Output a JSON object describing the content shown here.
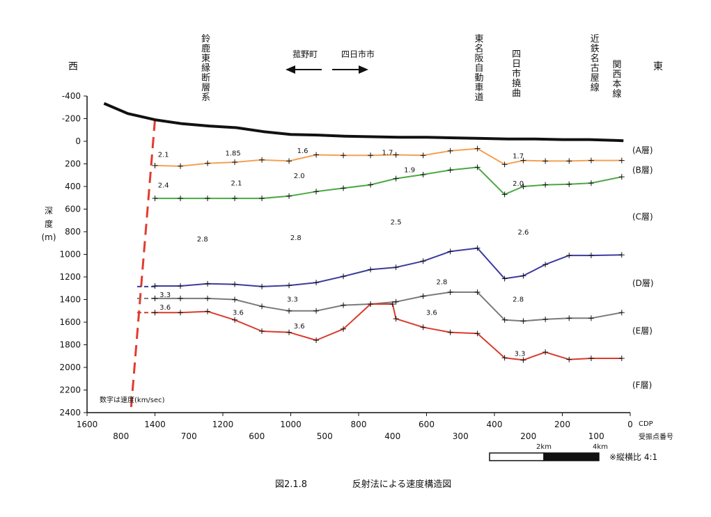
{
  "chart_data": {
    "type": "line",
    "caption_number": "図2.1.8",
    "caption_title": "反射法による速度構造図",
    "west_label": "西",
    "east_label": "東",
    "ylabel": "深度(m)",
    "ylabel_chars": [
      "深",
      "度",
      "(m)"
    ],
    "ylim": [
      2400,
      -400
    ],
    "y_ticks": [
      "-400",
      "-200",
      "0",
      "200",
      "400",
      "600",
      "800",
      "1000",
      "1200",
      "1400",
      "1600",
      "1800",
      "2000",
      "2200",
      "2400"
    ],
    "y_tick_values": [
      -400,
      -200,
      0,
      200,
      400,
      600,
      800,
      1000,
      1200,
      1400,
      1600,
      1800,
      2000,
      2200,
      2400
    ],
    "xlim": [
      1600,
      0
    ],
    "cdp_ticks": [
      "1600",
      "1400",
      "1200",
      "1000",
      "800",
      "600",
      "400",
      "200",
      "0"
    ],
    "cdp_tick_values": [
      1600,
      1400,
      1200,
      1000,
      800,
      600,
      400,
      200,
      0
    ],
    "cdp_label": "CDP",
    "shot_ticks": [
      "800",
      "700",
      "600",
      "500",
      "400",
      "300",
      "200",
      "100"
    ],
    "shot_tick_cdp": [
      1500,
      1300,
      1100,
      900,
      700,
      500,
      300,
      100
    ],
    "shot_label": "受振点番号",
    "velocity_note": "数字は速度(km/sec)",
    "direction_left": "菰野町",
    "direction_right": "四日市市",
    "location_labels": [
      {
        "text": "鈴鹿東縁断層系",
        "cdp": 1250
      },
      {
        "text": "東名阪自動車道",
        "cdp": 445
      },
      {
        "text": "四日市撓曲",
        "cdp": 335
      },
      {
        "text": "近鉄名古屋線",
        "cdp": 104
      },
      {
        "text": "関西本線",
        "cdp": 39
      }
    ],
    "scale_bar": {
      "labels": [
        "2km",
        "4km"
      ],
      "note": "※縦横比 4:1"
    },
    "layer_labels": [
      {
        "text": "(A層)",
        "depth": 75
      },
      {
        "text": "(B層)",
        "depth": 250
      },
      {
        "text": "(C層)",
        "depth": 660
      },
      {
        "text": "(D層)",
        "depth": 1250
      },
      {
        "text": "(E層)",
        "depth": 1670
      },
      {
        "text": "(F層)",
        "depth": 2150
      }
    ],
    "series": [
      {
        "color": "#111111",
        "width": 4,
        "markers": false,
        "x": [
          1550,
          1480,
          1400,
          1320,
          1240,
          1160,
          1080,
          1000,
          920,
          840,
          760,
          680,
          600,
          520,
          440,
          360,
          280,
          200,
          120,
          20
        ],
        "y": [
          -335,
          -245,
          -190,
          -155,
          -135,
          -120,
          -85,
          -60,
          -55,
          -45,
          -40,
          -35,
          -35,
          -30,
          -25,
          -20,
          -20,
          -15,
          -15,
          -5
        ]
      },
      {
        "color": "#f4a054",
        "width": 2,
        "markers": true,
        "x": [
          1400,
          1325,
          1245,
          1165,
          1085,
          1005,
          925,
          845,
          765,
          690,
          610,
          530,
          450,
          370,
          315,
          250,
          180,
          115,
          25
        ],
        "y": [
          215,
          220,
          195,
          185,
          165,
          175,
          120,
          125,
          125,
          120,
          125,
          85,
          65,
          205,
          170,
          175,
          175,
          170,
          170
        ]
      },
      {
        "color": "#4aa843",
        "width": 2,
        "markers": true,
        "x": [
          1400,
          1325,
          1245,
          1165,
          1085,
          1005,
          925,
          845,
          765,
          690,
          610,
          530,
          450,
          370,
          315,
          250,
          180,
          115,
          25
        ],
        "y": [
          505,
          505,
          505,
          505,
          505,
          485,
          445,
          415,
          385,
          330,
          295,
          255,
          230,
          470,
          400,
          385,
          380,
          370,
          315
        ]
      },
      {
        "color": "#3b3b9e",
        "width": 2,
        "markers": true,
        "x": [
          1400,
          1325,
          1245,
          1165,
          1085,
          1005,
          925,
          845,
          765,
          690,
          610,
          530,
          450,
          370,
          315,
          250,
          180,
          115,
          25
        ],
        "y": [
          1280,
          1280,
          1260,
          1265,
          1285,
          1275,
          1250,
          1195,
          1135,
          1115,
          1060,
          975,
          945,
          1215,
          1190,
          1090,
          1010,
          1010,
          1005
        ]
      },
      {
        "color": "#7a7a7a",
        "width": 2,
        "markers": true,
        "x": [
          1400,
          1325,
          1245,
          1165,
          1085,
          1005,
          925,
          845,
          765,
          690,
          610,
          530,
          450,
          370,
          315,
          250,
          180,
          115,
          25
        ],
        "y": [
          1390,
          1390,
          1390,
          1400,
          1460,
          1500,
          1500,
          1450,
          1440,
          1420,
          1370,
          1335,
          1335,
          1580,
          1590,
          1575,
          1565,
          1565,
          1515
        ]
      },
      {
        "color": "#d93b2b",
        "width": 2,
        "markers": true,
        "x": [
          1400,
          1325,
          1245,
          1165,
          1085,
          1005,
          925,
          845,
          765,
          700,
          690,
          610,
          530,
          450,
          370,
          315,
          250,
          180,
          115,
          25
        ],
        "y": [
          1515,
          1515,
          1505,
          1580,
          1680,
          1690,
          1760,
          1660,
          1440,
          1440,
          1570,
          1645,
          1690,
          1700,
          1915,
          1935,
          1865,
          1930,
          1920,
          1920
        ]
      }
    ],
    "dashed_stubs": [
      {
        "color": "#3b3b9e",
        "y": 1285
      },
      {
        "color": "#7a7a7a",
        "y": 1390
      },
      {
        "color": "#d93b2b",
        "y": 1515
      }
    ],
    "fault_line": {
      "color": "#e23b2e",
      "x": [
        1400,
        1470
      ],
      "y": [
        -190,
        2350
      ]
    },
    "velocity_labels": [
      {
        "text": "2.1",
        "cdp": 1375,
        "depth": 115
      },
      {
        "text": "1.85",
        "cdp": 1170,
        "depth": 100
      },
      {
        "text": "1.6",
        "cdp": 965,
        "depth": 80
      },
      {
        "text": "1.7",
        "cdp": 715,
        "depth": 95
      },
      {
        "text": "1.7",
        "cdp": 330,
        "depth": 125
      },
      {
        "text": "2.4",
        "cdp": 1375,
        "depth": 385
      },
      {
        "text": "2.1",
        "cdp": 1160,
        "depth": 365
      },
      {
        "text": "2.0",
        "cdp": 975,
        "depth": 300
      },
      {
        "text": "1.9",
        "cdp": 650,
        "depth": 250
      },
      {
        "text": "2.0",
        "cdp": 330,
        "depth": 370
      },
      {
        "text": "2.5",
        "cdp": 690,
        "depth": 710
      },
      {
        "text": "2.8",
        "cdp": 1260,
        "depth": 860
      },
      {
        "text": "2.8",
        "cdp": 985,
        "depth": 850
      },
      {
        "text": "2.6",
        "cdp": 315,
        "depth": 800
      },
      {
        "text": "2.8",
        "cdp": 555,
        "depth": 1240
      },
      {
        "text": "3.3",
        "cdp": 1370,
        "depth": 1355
      },
      {
        "text": "3.3",
        "cdp": 995,
        "depth": 1395
      },
      {
        "text": "2.8",
        "cdp": 330,
        "depth": 1395
      },
      {
        "text": "3.6",
        "cdp": 1370,
        "depth": 1465
      },
      {
        "text": "3.6",
        "cdp": 1155,
        "depth": 1510
      },
      {
        "text": "3.6",
        "cdp": 975,
        "depth": 1630
      },
      {
        "text": "3.6",
        "cdp": 585,
        "depth": 1510
      },
      {
        "text": "3.3",
        "cdp": 325,
        "depth": 1875
      }
    ]
  }
}
